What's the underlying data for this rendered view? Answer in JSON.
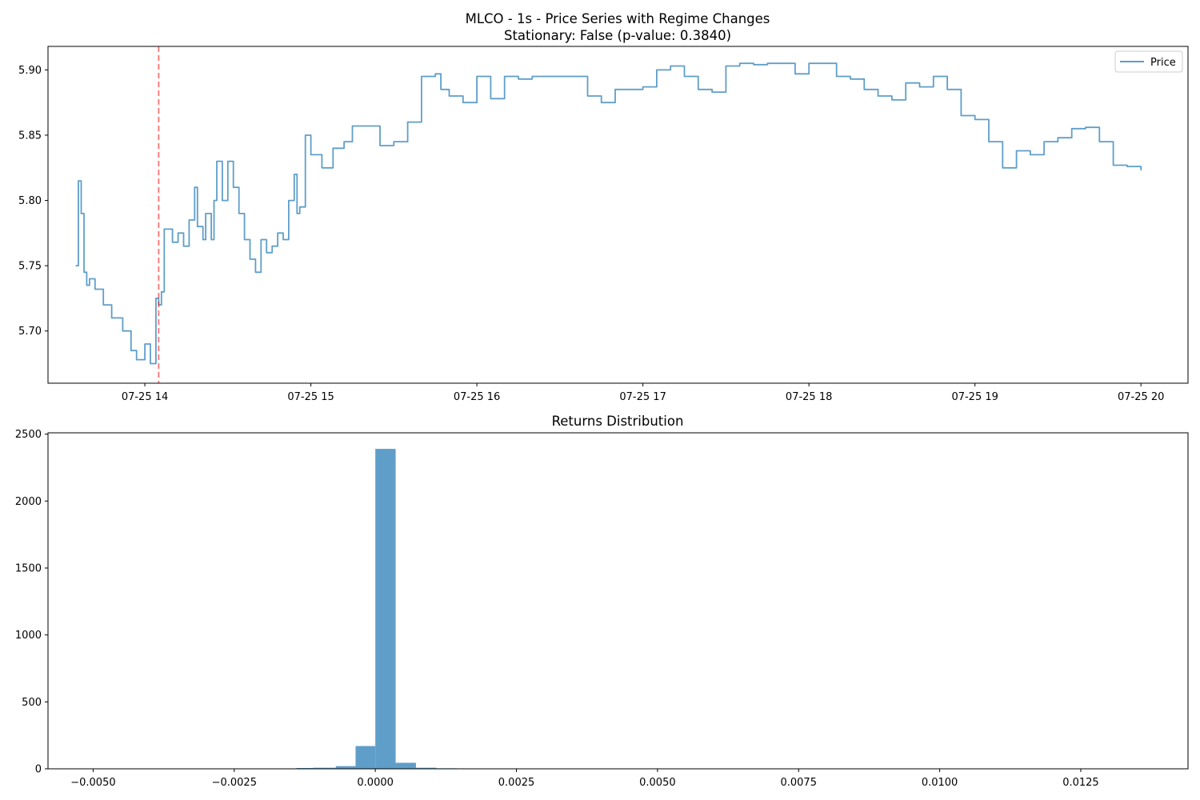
{
  "chart_data": [
    {
      "type": "line",
      "title": "MLCO - 1s - Price Series with Regime Changes",
      "subtitle": "Stationary: False (p-value: 0.3840)",
      "xlabel": "",
      "ylabel": "",
      "x_ticks": [
        "07-25 14",
        "07-25 15",
        "07-25 16",
        "07-25 17",
        "07-25 18",
        "07-25 19",
        "07-25 20"
      ],
      "xlim": [
        "07-25 13:25",
        "07-25 20:17"
      ],
      "y_ticks": [
        5.7,
        5.75,
        5.8,
        5.85,
        5.9
      ],
      "ylim": [
        5.66,
        5.918
      ],
      "grid": false,
      "legend": {
        "position": "top-right",
        "entries": [
          "Price"
        ]
      },
      "series": [
        {
          "name": "Price",
          "color": "#5f9ec9",
          "x": [
            "13:35",
            "13:36",
            "13:37",
            "13:38",
            "13:39",
            "13:40",
            "13:42",
            "13:45",
            "13:48",
            "13:52",
            "13:55",
            "13:57",
            "14:00",
            "14:02",
            "14:04",
            "14:05",
            "14:06",
            "14:07",
            "14:10",
            "14:12",
            "14:14",
            "14:16",
            "14:18",
            "14:19",
            "14:21",
            "14:22",
            "14:24",
            "14:25",
            "14:26",
            "14:28",
            "14:30",
            "14:32",
            "14:34",
            "14:36",
            "14:38",
            "14:40",
            "14:42",
            "14:44",
            "14:46",
            "14:48",
            "14:50",
            "14:52",
            "14:54",
            "14:55",
            "14:56",
            "14:58",
            "15:00",
            "15:04",
            "15:08",
            "15:12",
            "15:15",
            "15:20",
            "15:25",
            "15:30",
            "15:35",
            "15:40",
            "15:45",
            "15:47",
            "15:50",
            "15:55",
            "16:00",
            "16:05",
            "16:10",
            "16:15",
            "16:20",
            "16:30",
            "16:40",
            "16:45",
            "16:50",
            "17:00",
            "17:05",
            "17:10",
            "17:15",
            "17:20",
            "17:25",
            "17:30",
            "17:35",
            "17:40",
            "17:45",
            "17:50",
            "17:55",
            "18:00",
            "18:10",
            "18:15",
            "18:20",
            "18:25",
            "18:30",
            "18:35",
            "18:40",
            "18:45",
            "18:50",
            "18:55",
            "19:00",
            "19:05",
            "19:10",
            "19:15",
            "19:20",
            "19:25",
            "19:30",
            "19:35",
            "19:40",
            "19:45",
            "19:50",
            "19:55",
            "20:00"
          ],
          "y": [
            5.75,
            5.815,
            5.79,
            5.745,
            5.735,
            5.74,
            5.732,
            5.72,
            5.71,
            5.7,
            5.685,
            5.678,
            5.69,
            5.675,
            5.725,
            5.72,
            5.73,
            5.778,
            5.768,
            5.775,
            5.765,
            5.785,
            5.81,
            5.78,
            5.77,
            5.79,
            5.77,
            5.8,
            5.83,
            5.8,
            5.83,
            5.81,
            5.79,
            5.77,
            5.755,
            5.745,
            5.77,
            5.76,
            5.765,
            5.775,
            5.77,
            5.8,
            5.82,
            5.79,
            5.795,
            5.85,
            5.835,
            5.825,
            5.84,
            5.845,
            5.857,
            5.857,
            5.842,
            5.845,
            5.86,
            5.895,
            5.897,
            5.885,
            5.88,
            5.875,
            5.895,
            5.878,
            5.895,
            5.893,
            5.895,
            5.895,
            5.88,
            5.875,
            5.885,
            5.887,
            5.9,
            5.903,
            5.895,
            5.885,
            5.883,
            5.903,
            5.905,
            5.904,
            5.905,
            5.905,
            5.897,
            5.905,
            5.895,
            5.893,
            5.885,
            5.88,
            5.877,
            5.89,
            5.887,
            5.895,
            5.885,
            5.865,
            5.862,
            5.845,
            5.825,
            5.838,
            5.835,
            5.845,
            5.848,
            5.855,
            5.856,
            5.845,
            5.827,
            5.826,
            5.823
          ]
        }
      ],
      "regime_changes": [
        {
          "x": "14:05",
          "color": "#ff0000",
          "style": "dashed"
        }
      ]
    },
    {
      "type": "bar",
      "title": "Returns Distribution",
      "xlabel": "",
      "ylabel": "",
      "x_ticks": [
        "−0.0050",
        "−0.0025",
        "0.0000",
        "0.0025",
        "0.0050",
        "0.0075",
        "0.0100",
        "0.0125"
      ],
      "x_tick_values": [
        -0.005,
        -0.0025,
        0,
        0.0025,
        0.005,
        0.0075,
        0.01,
        0.0125
      ],
      "xlim": [
        -0.0058,
        0.0144
      ],
      "y_ticks": [
        0,
        500,
        1000,
        1500,
        2000,
        2500
      ],
      "ylim": [
        0,
        2510
      ],
      "grid": false,
      "color": "#5f9ec9",
      "bins": [
        {
          "left": -0.0018,
          "right": -0.0014,
          "value": 3
        },
        {
          "left": -0.0014,
          "right": -0.0011,
          "value": 6
        },
        {
          "left": -0.0011,
          "right": -0.0007,
          "value": 8
        },
        {
          "left": -0.0007,
          "right": -0.00035,
          "value": 20
        },
        {
          "left": -0.00035,
          "right": 0.0,
          "value": 170
        },
        {
          "left": 0.0,
          "right": 0.00036,
          "value": 2390
        },
        {
          "left": 0.00036,
          "right": 0.00072,
          "value": 45
        },
        {
          "left": 0.00072,
          "right": 0.00108,
          "value": 8
        },
        {
          "left": 0.00108,
          "right": 0.00144,
          "value": 4
        },
        {
          "left": 0.00144,
          "right": 0.0018,
          "value": 3
        },
        {
          "left": 0.0018,
          "right": 0.00216,
          "value": 2
        }
      ]
    }
  ]
}
